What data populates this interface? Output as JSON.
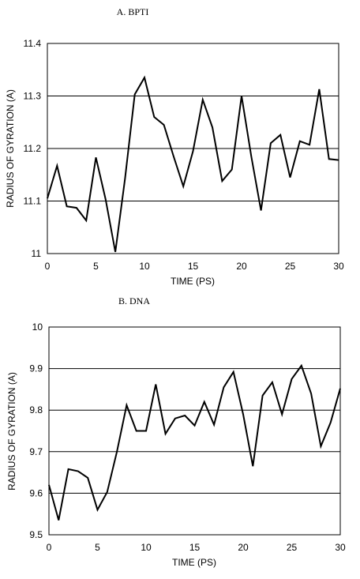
{
  "chart_data": [
    {
      "type": "line",
      "title": "A. BPTI",
      "xlabel": "TIME (PS)",
      "ylabel": "RADIUS OF GYRATION (A)",
      "xlim": [
        0,
        30
      ],
      "ylim": [
        11,
        11.4
      ],
      "xticks": [
        "0",
        "5",
        "10",
        "15",
        "20",
        "25",
        "30"
      ],
      "yticks": [
        "11",
        "11.1",
        "11.2",
        "11.3",
        "11.4"
      ],
      "grid": "horizontal",
      "x": [
        0,
        1,
        2,
        3,
        4,
        5,
        6,
        7,
        8,
        9,
        10,
        11,
        12,
        13,
        14,
        15,
        16,
        17,
        18,
        19,
        20,
        21,
        22,
        23,
        24,
        25,
        26,
        27,
        28,
        29,
        30
      ],
      "values": [
        11.105,
        11.167,
        11.09,
        11.087,
        11.063,
        11.183,
        11.103,
        11.003,
        11.143,
        11.303,
        11.335,
        11.26,
        11.245,
        11.185,
        11.128,
        11.195,
        11.293,
        11.24,
        11.138,
        11.16,
        11.3,
        11.185,
        11.082,
        11.21,
        11.226,
        11.145,
        11.214,
        11.207,
        11.313,
        11.18,
        11.178
      ]
    },
    {
      "type": "line",
      "title": "B. DNA",
      "xlabel": "TIME (PS)",
      "ylabel": "RADIUS OF GYRATION (A)",
      "xlim": [
        0,
        30
      ],
      "ylim": [
        9.5,
        10
      ],
      "xticks": [
        "0",
        "5",
        "10",
        "15",
        "20",
        "25",
        "30"
      ],
      "yticks": [
        "9.5",
        "9.6",
        "9.7",
        "9.8",
        "9.9",
        "10"
      ],
      "grid": "horizontal",
      "x": [
        0,
        1,
        2,
        3,
        4,
        5,
        6,
        7,
        8,
        9,
        10,
        11,
        12,
        13,
        14,
        15,
        16,
        17,
        18,
        19,
        20,
        21,
        22,
        23,
        24,
        25,
        26,
        27,
        28,
        29,
        30
      ],
      "values": [
        9.62,
        9.535,
        9.658,
        9.653,
        9.637,
        9.56,
        9.603,
        9.7,
        9.812,
        9.75,
        9.75,
        9.862,
        9.743,
        9.78,
        9.787,
        9.763,
        9.82,
        9.765,
        9.855,
        9.892,
        9.79,
        9.665,
        9.835,
        9.867,
        9.79,
        9.875,
        9.907,
        9.84,
        9.713,
        9.77,
        9.852
      ]
    }
  ]
}
